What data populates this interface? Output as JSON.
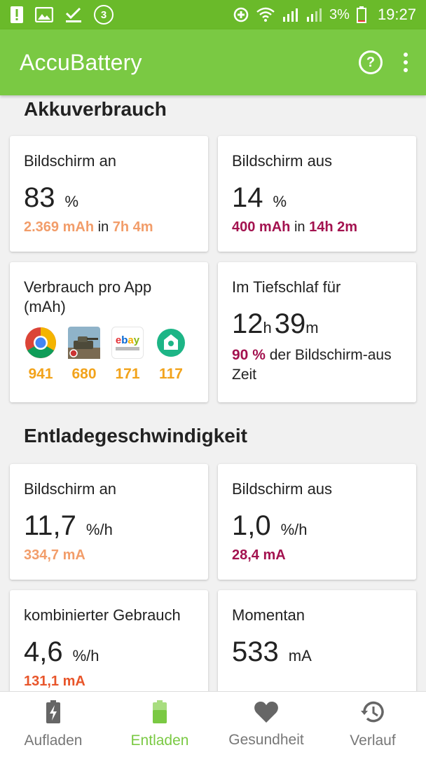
{
  "statusbar": {
    "notification_count": "3",
    "battery_percent": "3%",
    "time": "19:27"
  },
  "appbar": {
    "title": "AccuBattery",
    "help_icon": "help-circle-icon",
    "more_icon": "more-vert-icon"
  },
  "usage": {
    "section_title": "Akkuverbrauch",
    "screen_on": {
      "label": "Bildschirm an",
      "value": "83",
      "unit": "%",
      "mah": "2.369 mAh",
      "in": "in",
      "duration": "7h 4m"
    },
    "screen_off": {
      "label": "Bildschirm aus",
      "value": "14",
      "unit": "%",
      "mah": "400 mAh",
      "in": "in",
      "duration": "14h 2m"
    },
    "per_app": {
      "label": "Verbrauch pro App (mAh)",
      "apps": [
        {
          "icon": "chrome-icon",
          "value": "941"
        },
        {
          "icon": "world-of-tanks-icon",
          "value": "680"
        },
        {
          "icon": "ebay-kleinanzeigen-icon",
          "value": "171"
        },
        {
          "icon": "green-app-icon",
          "value": "117"
        }
      ]
    },
    "deep_sleep": {
      "label": "Im Tiefschlaf für",
      "hours": "12",
      "hours_unit": "h",
      "minutes": "39",
      "minutes_unit": "m",
      "percent": "90 %",
      "desc": " der Bildschirm-aus Zeit"
    }
  },
  "discharge": {
    "section_title": "Entladegeschwindigkeit",
    "screen_on": {
      "label": "Bildschirm an",
      "value": "11,7",
      "unit": "%/h",
      "ma": "334,7 mA"
    },
    "screen_off": {
      "label": "Bildschirm aus",
      "value": "1,0",
      "unit": "%/h",
      "ma": "28,4 mA"
    },
    "combined": {
      "label": "kombinierter Gebrauch",
      "value": "4,6",
      "unit": "%/h",
      "ma": "131,1 mA"
    },
    "current": {
      "label": "Momentan",
      "value": "533",
      "unit": "mA"
    }
  },
  "bottom_nav": {
    "items": [
      {
        "label": "Aufladen",
        "icon": "battery-charging-icon"
      },
      {
        "label": "Entladen",
        "icon": "battery-icon"
      },
      {
        "label": "Gesundheit",
        "icon": "heart-icon"
      },
      {
        "label": "Verlauf",
        "icon": "history-icon"
      }
    ],
    "active_index": 1
  },
  "colors": {
    "statusbar": "#6aba2a",
    "appbar": "#7ac943",
    "orange": "#f29d6a",
    "crimson": "#a3124f",
    "red": "#e8552a",
    "app_value": "#f2a31b"
  }
}
